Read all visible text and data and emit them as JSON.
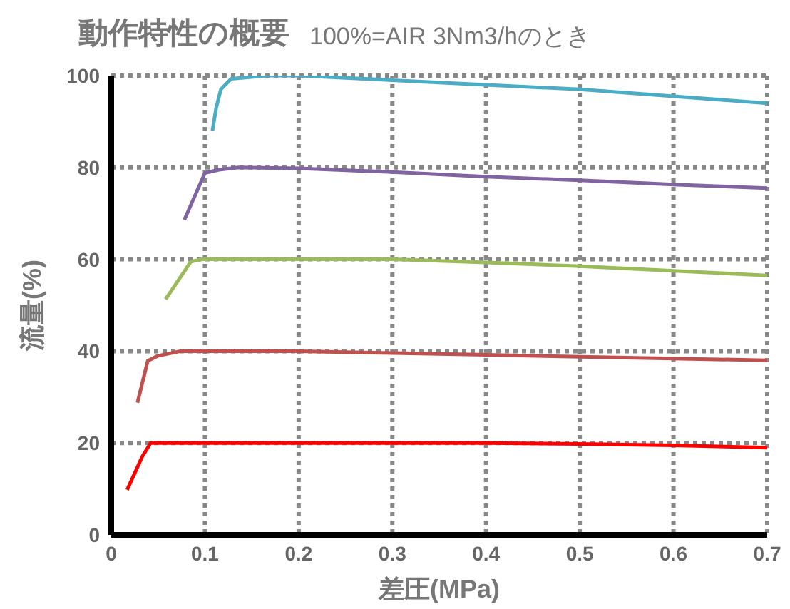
{
  "chart_data": {
    "type": "line",
    "title": "動作特性の概要",
    "subtitle": "100%=AIR 3Nm3/hのとき",
    "xlabel": "差圧(MPa)",
    "ylabel": "流量(%)",
    "xlim": [
      0,
      0.7
    ],
    "xticks": [
      0,
      0.1,
      0.2,
      0.3,
      0.4,
      0.5,
      0.6,
      0.7
    ],
    "ylim": [
      0,
      100
    ],
    "yticks": [
      0,
      20,
      40,
      60,
      80,
      100
    ],
    "grid": true,
    "marker": "none",
    "line_style": "solid",
    "series": [
      {
        "color": "#4bacc6",
        "x": [
          0.108,
          0.112,
          0.117,
          0.128,
          0.167,
          0.2,
          0.3,
          0.4,
          0.5,
          0.6,
          0.7
        ],
        "values": [
          88,
          93,
          97,
          99.3,
          100,
          100,
          99,
          98,
          97,
          95.5,
          94
        ]
      },
      {
        "color": "#8064a2",
        "x": [
          0.078,
          0.1,
          0.115,
          0.136,
          0.2,
          0.3,
          0.4,
          0.5,
          0.6,
          0.7
        ],
        "values": [
          68.6,
          78.8,
          79.5,
          80,
          79.8,
          79,
          78,
          77.2,
          76.3,
          75.5
        ]
      },
      {
        "color": "#9bbb59",
        "x": [
          0.058,
          0.085,
          0.097,
          0.2,
          0.3,
          0.4,
          0.5,
          0.6,
          0.7
        ],
        "values": [
          51.3,
          59.5,
          60,
          60,
          60,
          59.3,
          58.5,
          57.5,
          56.5
        ]
      },
      {
        "color": "#c0504d",
        "x": [
          0.028,
          0.039,
          0.05,
          0.074,
          0.2,
          0.3,
          0.4,
          0.5,
          0.6,
          0.7
        ],
        "values": [
          28.8,
          37.9,
          39,
          40,
          40,
          39.6,
          39.2,
          38.8,
          38.4,
          38
        ]
      },
      {
        "color": "#ff0000",
        "x": [
          0.017,
          0.033,
          0.042,
          0.1,
          0.2,
          0.3,
          0.4,
          0.5,
          0.6,
          0.7
        ],
        "values": [
          9.8,
          17,
          20,
          20,
          20,
          20,
          20,
          19.8,
          19.5,
          19
        ]
      }
    ]
  }
}
